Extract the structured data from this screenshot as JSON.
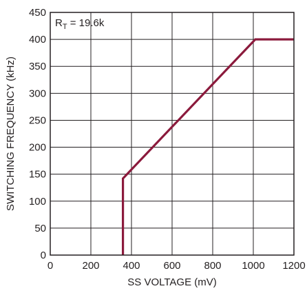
{
  "chart_data": {
    "type": "line",
    "title": "",
    "xlabel": "SS VOLTAGE (mV)",
    "ylabel": "SWITCHING FREQUENCY (kHz)",
    "xlim": [
      0,
      1200
    ],
    "ylim": [
      0,
      450
    ],
    "x_ticks": [
      0,
      200,
      400,
      600,
      800,
      1000,
      1200
    ],
    "y_ticks": [
      0,
      50,
      100,
      150,
      200,
      250,
      300,
      350,
      400,
      450
    ],
    "grid": true,
    "annotation": {
      "main": "R",
      "sub": "T",
      "rest": " = 19.6k"
    },
    "series": [
      {
        "color": "#8b1a3c",
        "x": [
          358,
          358,
          1010,
          1200
        ],
        "y": [
          0,
          142,
          400,
          400
        ]
      }
    ]
  }
}
